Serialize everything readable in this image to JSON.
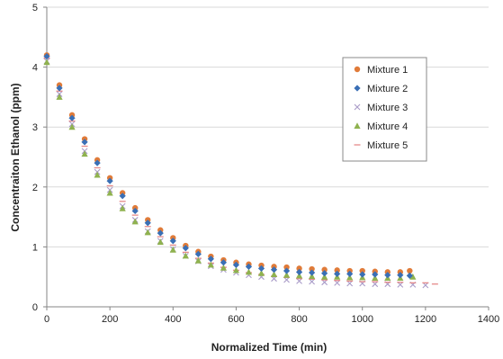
{
  "chart_data": {
    "type": "scatter",
    "title": "",
    "xlabel": "Normalized Time (min)",
    "ylabel": "Concentraiton Ethanol (ppm)",
    "xlim": [
      0,
      1400
    ],
    "ylim": [
      0,
      5
    ],
    "x_ticks": [
      "0",
      "200",
      "400",
      "600",
      "800",
      "1000",
      "1200",
      "1400"
    ],
    "y_ticks": [
      "0",
      "1",
      "2",
      "3",
      "4",
      "5"
    ],
    "grid": "horizontal major lines",
    "legend_position": "right",
    "series": [
      {
        "name": "Mixture 1",
        "marker": "circle",
        "color": "#E07B39",
        "x": [
          0,
          40,
          80,
          120,
          160,
          200,
          240,
          280,
          320,
          360,
          400,
          440,
          480,
          520,
          560,
          600,
          640,
          680,
          720,
          760,
          800,
          840,
          880,
          920,
          960,
          1000,
          1040,
          1080,
          1120,
          1150
        ],
        "y": [
          4.2,
          3.7,
          3.2,
          2.8,
          2.45,
          2.15,
          1.9,
          1.65,
          1.45,
          1.28,
          1.15,
          1.02,
          0.92,
          0.84,
          0.78,
          0.74,
          0.71,
          0.69,
          0.67,
          0.66,
          0.64,
          0.63,
          0.62,
          0.61,
          0.6,
          0.6,
          0.59,
          0.58,
          0.58,
          0.6
        ]
      },
      {
        "name": "Mixture 2",
        "marker": "diamond",
        "color": "#3A6FB5",
        "x": [
          0,
          40,
          80,
          120,
          160,
          200,
          240,
          280,
          320,
          360,
          400,
          440,
          480,
          520,
          560,
          600,
          640,
          680,
          720,
          760,
          800,
          840,
          880,
          920,
          960,
          1000,
          1040,
          1080,
          1120,
          1150
        ],
        "y": [
          4.18,
          3.65,
          3.15,
          2.75,
          2.4,
          2.1,
          1.85,
          1.6,
          1.4,
          1.23,
          1.1,
          0.98,
          0.88,
          0.8,
          0.74,
          0.7,
          0.67,
          0.64,
          0.62,
          0.6,
          0.58,
          0.57,
          0.56,
          0.55,
          0.55,
          0.54,
          0.54,
          0.53,
          0.53,
          0.52
        ]
      },
      {
        "name": "Mixture 3",
        "marker": "x",
        "color": "#A99BC8",
        "x": [
          0,
          40,
          80,
          120,
          160,
          200,
          240,
          280,
          320,
          360,
          400,
          440,
          480,
          520,
          560,
          600,
          640,
          680,
          720,
          760,
          800,
          840,
          880,
          920,
          960,
          1000,
          1040,
          1080,
          1120,
          1160,
          1200
        ],
        "y": [
          4.1,
          3.55,
          3.05,
          2.6,
          2.25,
          1.95,
          1.68,
          1.45,
          1.26,
          1.1,
          0.96,
          0.85,
          0.76,
          0.68,
          0.62,
          0.57,
          0.53,
          0.5,
          0.47,
          0.45,
          0.43,
          0.42,
          0.41,
          0.4,
          0.39,
          0.39,
          0.38,
          0.38,
          0.37,
          0.37,
          0.36
        ]
      },
      {
        "name": "Mixture 4",
        "marker": "triangle",
        "color": "#8FB24F",
        "x": [
          0,
          40,
          80,
          120,
          160,
          200,
          240,
          280,
          320,
          360,
          400,
          440,
          480,
          520,
          560,
          600,
          640,
          680,
          720,
          760,
          800,
          840,
          880,
          920,
          960,
          1000,
          1040,
          1080,
          1120,
          1160
        ],
        "y": [
          4.08,
          3.5,
          3.0,
          2.55,
          2.2,
          1.9,
          1.64,
          1.42,
          1.24,
          1.08,
          0.95,
          0.85,
          0.77,
          0.7,
          0.65,
          0.61,
          0.58,
          0.56,
          0.54,
          0.53,
          0.52,
          0.51,
          0.5,
          0.5,
          0.49,
          0.49,
          0.48,
          0.48,
          0.48,
          0.5
        ]
      },
      {
        "name": "Mixture 5",
        "marker": "dash",
        "color": "#E58A8A",
        "x": [
          0,
          40,
          80,
          120,
          160,
          200,
          240,
          280,
          320,
          360,
          400,
          440,
          480,
          520,
          560,
          600,
          640,
          680,
          720,
          760,
          800,
          840,
          880,
          920,
          960,
          1000,
          1040,
          1080,
          1120,
          1160,
          1200,
          1230
        ],
        "y": [
          4.15,
          3.6,
          3.1,
          2.68,
          2.32,
          2.02,
          1.76,
          1.53,
          1.34,
          1.17,
          1.03,
          0.91,
          0.81,
          0.73,
          0.66,
          0.61,
          0.57,
          0.54,
          0.51,
          0.49,
          0.47,
          0.46,
          0.45,
          0.44,
          0.43,
          0.42,
          0.42,
          0.41,
          0.41,
          0.4,
          0.4,
          0.38
        ]
      }
    ]
  }
}
